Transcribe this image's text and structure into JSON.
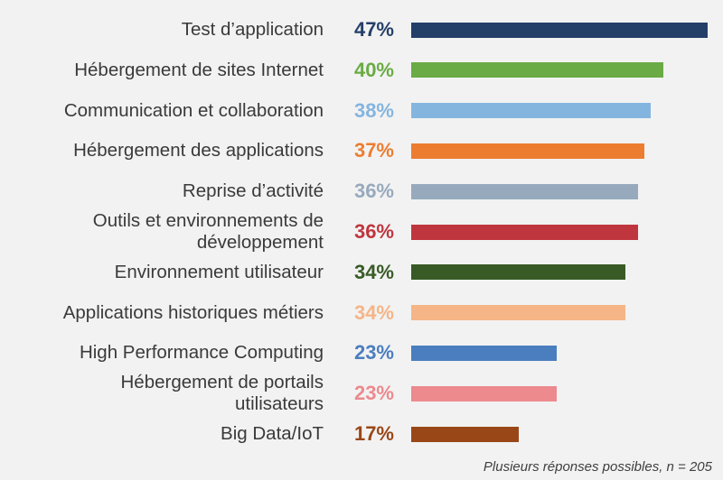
{
  "chart_data": {
    "type": "bar",
    "orientation": "horizontal",
    "categories": [
      "Test d’application",
      "Hébergement de sites Internet",
      "Communication et collaboration",
      "Hébergement des applications",
      "Reprise d’activité",
      "Outils et environnements de développement",
      "Environnement utilisateur",
      "Applications historiques métiers",
      "High Performance Computing",
      "Hébergement de portails utilisateurs",
      "Big Data/IoT"
    ],
    "category_lines": [
      [
        "Test d’application"
      ],
      [
        "Hébergement de sites Internet"
      ],
      [
        "Communication et collaboration"
      ],
      [
        "Hébergement des applications"
      ],
      [
        "Reprise d’activité"
      ],
      [
        "Outils et environnements de",
        "développement"
      ],
      [
        "Environnement utilisateur"
      ],
      [
        "Applications historiques métiers"
      ],
      [
        "High Performance Computing"
      ],
      [
        "Hébergement de portails",
        "utilisateurs"
      ],
      [
        "Big Data/IoT"
      ]
    ],
    "values": [
      47,
      40,
      38,
      37,
      36,
      36,
      34,
      34,
      23,
      23,
      17
    ],
    "value_labels": [
      "47%",
      "40%",
      "38%",
      "37%",
      "36%",
      "36%",
      "34%",
      "34%",
      "23%",
      "23%",
      "17%"
    ],
    "colors": [
      "#243f68",
      "#6aab45",
      "#84b5df",
      "#ec7d30",
      "#97aabd",
      "#c0363e",
      "#385b26",
      "#f5b587",
      "#4a7ebe",
      "#ec8a8e",
      "#9a4718"
    ],
    "xlim": [
      0,
      47
    ],
    "title": "",
    "xlabel": "",
    "ylabel": ""
  },
  "footnote": "Plusieurs réponses possibles, n = 205"
}
